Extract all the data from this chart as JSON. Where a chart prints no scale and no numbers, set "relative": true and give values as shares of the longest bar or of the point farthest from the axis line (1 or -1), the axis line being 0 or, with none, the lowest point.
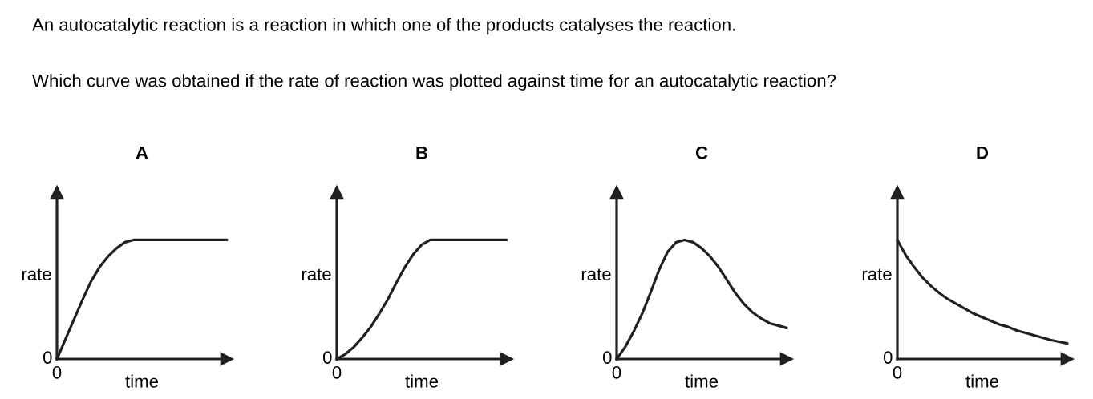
{
  "chart_data": [
    {
      "type": "line",
      "title": "A",
      "xlabel": "time",
      "ylabel": "rate",
      "relative": true,
      "color": "#231f20",
      "marker": "none",
      "line_style": "solid",
      "categories": [
        null,
        null,
        null,
        null,
        null,
        null,
        null,
        null,
        null,
        null,
        null,
        null,
        null,
        null,
        null,
        null,
        null,
        null,
        null,
        null,
        null
      ],
      "values": [
        0,
        0.165,
        0.33,
        0.495,
        0.65,
        0.77,
        0.86,
        0.93,
        0.98,
        1,
        1,
        1,
        1,
        1,
        1,
        1,
        1,
        1,
        1,
        1,
        1
      ],
      "annotations": [
        "An autocatalytic reaction is a reaction in which one of the products catalyses the reaction.",
        "Which curve was obtained if the rate of reaction was plotted against time for an autocatalytic reaction?",
        "0",
        "0"
      ]
    },
    {
      "type": "line",
      "title": "B",
      "xlabel": "time",
      "ylabel": "rate",
      "relative": true,
      "color": "#231f20",
      "marker": "none",
      "line_style": "solid",
      "categories": [
        null,
        null,
        null,
        null,
        null,
        null,
        null,
        null,
        null,
        null,
        null,
        null,
        null,
        null,
        null,
        null,
        null,
        null,
        null,
        null,
        null
      ],
      "values": [
        0,
        0.04,
        0.1,
        0.18,
        0.27,
        0.38,
        0.5,
        0.64,
        0.77,
        0.88,
        0.96,
        1,
        1,
        1,
        1,
        1,
        1,
        1,
        1,
        1,
        1
      ],
      "annotations": [
        "0",
        "0"
      ]
    },
    {
      "type": "line",
      "title": "C",
      "xlabel": "time",
      "ylabel": "rate",
      "relative": true,
      "color": "#231f20",
      "marker": "none",
      "line_style": "solid",
      "categories": [
        null,
        null,
        null,
        null,
        null,
        null,
        null,
        null,
        null,
        null,
        null,
        null,
        null,
        null,
        null,
        null,
        null,
        null,
        null,
        null,
        null
      ],
      "values": [
        0,
        0.1,
        0.23,
        0.38,
        0.56,
        0.75,
        0.9,
        0.98,
        1,
        0.98,
        0.93,
        0.86,
        0.77,
        0.66,
        0.55,
        0.46,
        0.39,
        0.34,
        0.3,
        0.28,
        0.26
      ],
      "annotations": [
        "0",
        "0"
      ]
    },
    {
      "type": "line",
      "title": "D",
      "xlabel": "time",
      "ylabel": "rate",
      "relative": true,
      "color": "#231f20",
      "marker": "none",
      "line_style": "solid",
      "categories": [
        null,
        null,
        null,
        null,
        null,
        null,
        null,
        null,
        null,
        null,
        null,
        null,
        null,
        null,
        null,
        null,
        null,
        null,
        null,
        null,
        null
      ],
      "values": [
        1,
        0.87,
        0.77,
        0.68,
        0.61,
        0.55,
        0.5,
        0.46,
        0.42,
        0.38,
        0.35,
        0.32,
        0.29,
        0.27,
        0.24,
        0.22,
        0.2,
        0.18,
        0.16,
        0.145,
        0.13
      ],
      "annotations": [
        "0",
        "0"
      ]
    }
  ]
}
